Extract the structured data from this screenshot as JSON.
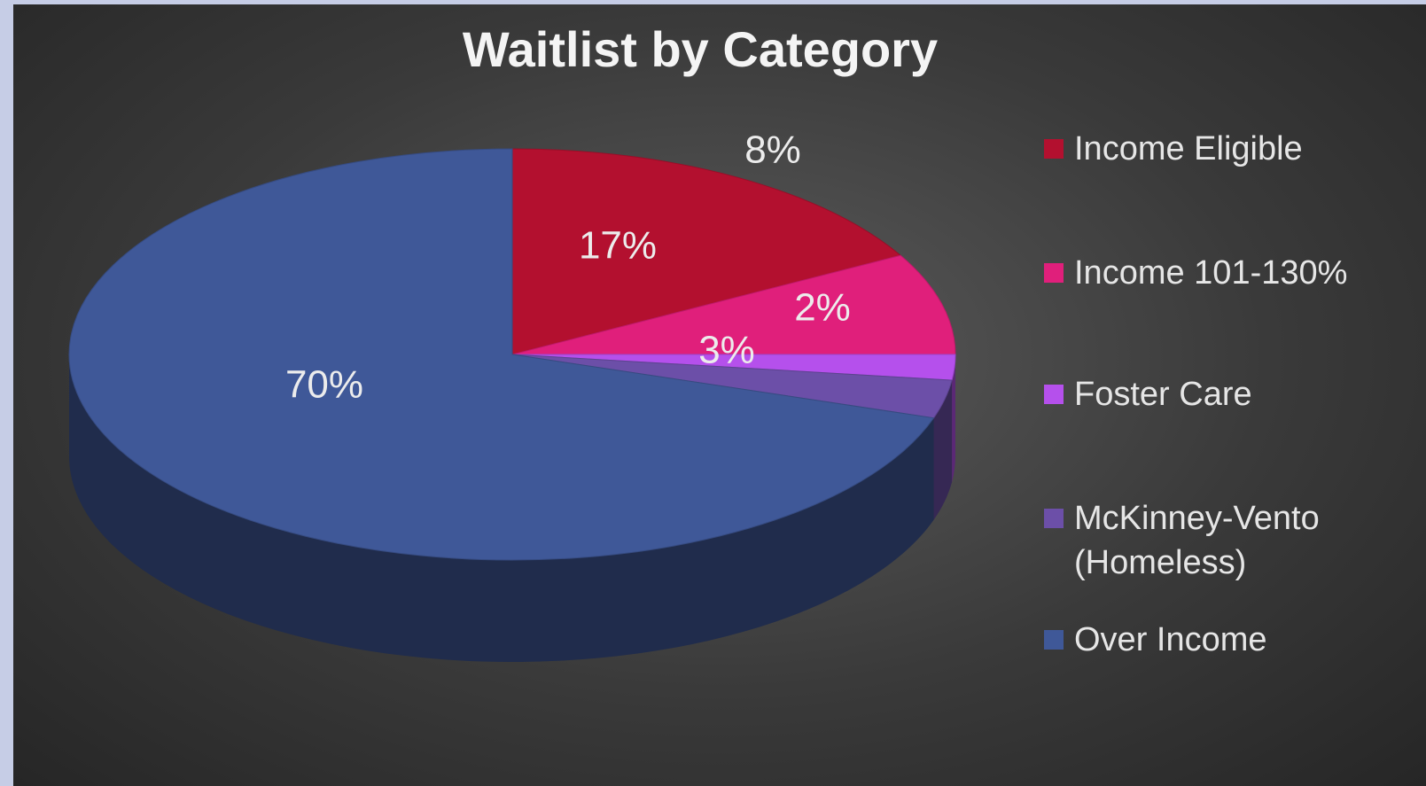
{
  "chart_data": {
    "type": "pie",
    "title": "Waitlist by Category",
    "categories": [
      "Income Eligible",
      "Income 101-130%",
      "Foster Care",
      "McKinney-Vento (Homeless)",
      "Over Income"
    ],
    "values": [
      17,
      8,
      2,
      3,
      70
    ],
    "value_labels": [
      "17%",
      "8%",
      "2%",
      "3%",
      "70%"
    ],
    "colors": [
      "#b3102f",
      "#e01f7b",
      "#b550ec",
      "#6c4fa8",
      "#3f5898"
    ],
    "legend": "right"
  }
}
